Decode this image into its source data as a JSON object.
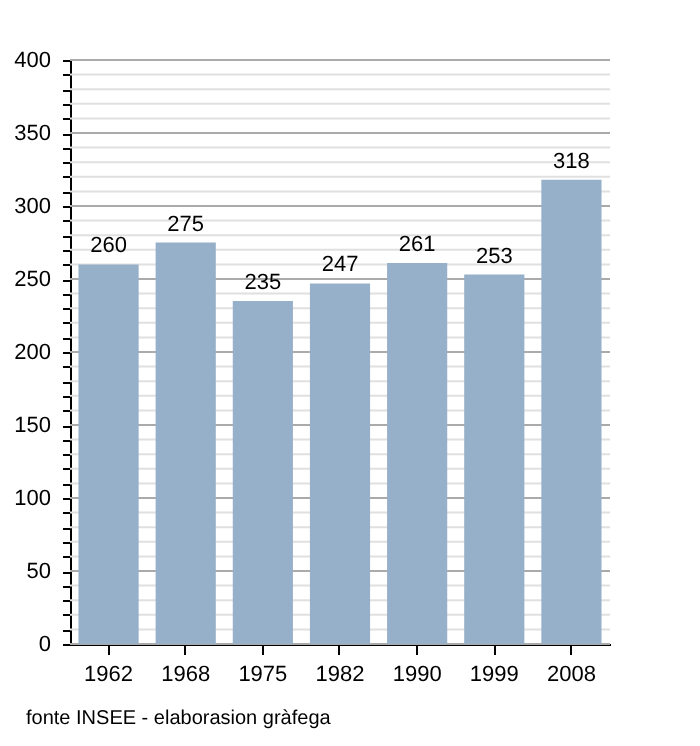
{
  "chart_data": {
    "type": "bar",
    "categories": [
      "1962",
      "1968",
      "1975",
      "1982",
      "1990",
      "1999",
      "2008"
    ],
    "values": [
      260,
      275,
      235,
      247,
      261,
      253,
      318
    ],
    "color": "#97b0c9",
    "ylim": [
      0,
      400
    ],
    "yticks": [
      0,
      {
        "value": 10,
        "label": null
      },
      {
        "value": 20,
        "label": null
      },
      {
        "value": 30,
        "label": null
      },
      {
        "value": 40,
        "label": null
      },
      50,
      {
        "value": 60,
        "label": null
      },
      {
        "value": 70,
        "label": null
      },
      {
        "value": 80,
        "label": null
      },
      {
        "value": 90,
        "label": null
      },
      100,
      {
        "value": 110,
        "label": null
      },
      {
        "value": 120,
        "label": null
      },
      {
        "value": 130,
        "label": null
      },
      {
        "value": 140,
        "label": null
      },
      150,
      {
        "value": 160,
        "label": null
      },
      {
        "value": 170,
        "label": null
      },
      {
        "value": 180,
        "label": null
      },
      {
        "value": 190,
        "label": null
      },
      200,
      {
        "value": 210,
        "label": null
      },
      {
        "value": 220,
        "label": null
      },
      {
        "value": 230,
        "label": null
      },
      {
        "value": 240,
        "label": null
      },
      250,
      {
        "value": 260,
        "label": null
      },
      {
        "value": 270,
        "label": null
      },
      {
        "value": 280,
        "label": null
      },
      {
        "value": 290,
        "label": null
      },
      300,
      {
        "value": 310,
        "label": null
      },
      {
        "value": 320,
        "label": null
      },
      {
        "value": 330,
        "label": null
      },
      {
        "value": 340,
        "label": null
      },
      350,
      {
        "value": 360,
        "label": null
      },
      {
        "value": 370,
        "label": null
      },
      {
        "value": 380,
        "label": null
      },
      {
        "value": 390,
        "label": null
      },
      400
    ],
    "grid": true,
    "data_labels": true,
    "annotations": [
      "fonte INSEE - elaborasion gràfega"
    ]
  }
}
